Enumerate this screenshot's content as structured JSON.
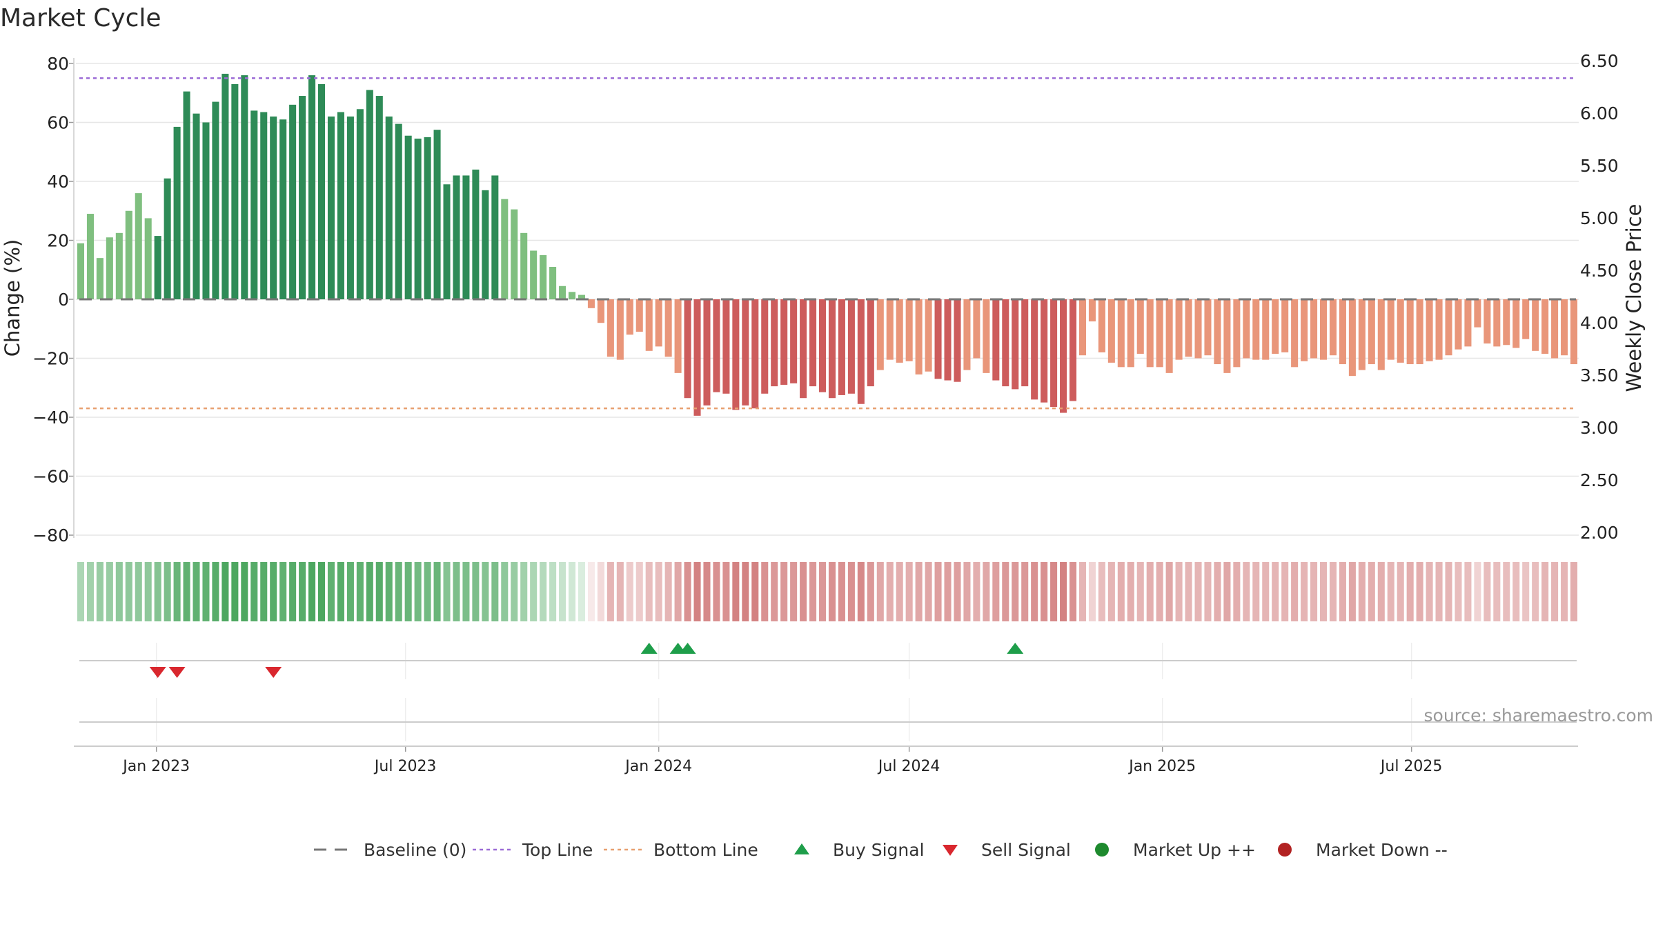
{
  "title": "Market Cycle",
  "source": "source: sharemaestro.com",
  "y_left_label": "Change (%)",
  "y_right_label": "Weekly Close Price",
  "y_left_ticks": [
    "80",
    "60",
    "40",
    "20",
    "0",
    "−20",
    "−40",
    "−60",
    "−80"
  ],
  "y_right_ticks": [
    "6.50",
    "6.00",
    "5.50",
    "5.00",
    "4.50",
    "4.00",
    "3.50",
    "3.00",
    "2.50",
    "2.00"
  ],
  "x_ticks": [
    "Jan 2023",
    "Jul 2023",
    "Jan 2024",
    "Jul 2024",
    "Jan 2025",
    "Jul 2025"
  ],
  "legend": [
    {
      "label": "Baseline (0)",
      "marker": "dash-line",
      "color": "#777777"
    },
    {
      "label": "Top Line",
      "marker": "dot-line",
      "color": "#9b6bd6"
    },
    {
      "label": "Bottom Line",
      "marker": "dot-line",
      "color": "#e8a070"
    },
    {
      "label": "Buy Signal",
      "marker": "triangle-up",
      "color": "#1e9e4a"
    },
    {
      "label": "Sell Signal",
      "marker": "triangle-down",
      "color": "#d9272e"
    },
    {
      "label": "Market Up ++",
      "marker": "circle",
      "color": "#1e8a2e"
    },
    {
      "label": "Market Down --",
      "marker": "circle",
      "color": "#b22222"
    }
  ],
  "colors": {
    "up_dark": "#2e8b57",
    "up_light": "#7fbf7f",
    "down_dark": "#cd5c5c",
    "down_light": "#e9967a",
    "top_line": "#9b6bd6",
    "bottom_line": "#e8a070",
    "baseline": "#777777",
    "buy": "#1e9e4a",
    "sell": "#d9272e"
  },
  "chart_data": {
    "type": "bar",
    "ylabel": "Change (%)",
    "y2label": "Weekly Close Price",
    "ylim": [
      -80,
      80
    ],
    "y2lim": [
      2.0,
      6.5
    ],
    "start_date": "2022-11-07",
    "frequency": "weekly",
    "top_line": 75,
    "bottom_line": -37,
    "baseline": 0,
    "values": [
      19,
      29,
      14,
      21,
      22.5,
      30,
      36,
      27.5,
      21.5,
      41,
      58.5,
      70.5,
      63,
      60,
      67,
      76.5,
      73,
      76,
      64,
      63.5,
      62,
      61,
      66,
      69,
      76,
      73,
      62,
      63.5,
      62,
      64.5,
      71,
      69,
      62,
      59.5,
      55.5,
      54.5,
      55,
      57.5,
      39,
      42,
      42,
      44,
      37,
      42,
      34,
      30.5,
      22.5,
      16.5,
      15,
      11,
      4.5,
      2.5,
      1.5,
      -3,
      -8,
      -19.5,
      -20.5,
      -12,
      -11,
      -17.5,
      -16,
      -19.5,
      -25,
      -33.5,
      -39.5,
      -36,
      -31.5,
      -32,
      -37.5,
      -36,
      -37,
      -32,
      -29.5,
      -29,
      -28.5,
      -33.5,
      -29.5,
      -31.5,
      -33.5,
      -32.5,
      -32,
      -35.5,
      -29.5,
      -24,
      -20.5,
      -21.5,
      -21,
      -25.5,
      -24.5,
      -27,
      -27.5,
      -28,
      -24,
      -20,
      -25,
      -27.5,
      -29.5,
      -30.5,
      -29.5,
      -34,
      -35,
      -36.5,
      -38.5,
      -34.5,
      -19,
      -7.5,
      -18,
      -21.5,
      -23,
      -23,
      -18.5,
      -23,
      -23,
      -25,
      -20.5,
      -19.5,
      -20,
      -19,
      -22,
      -25,
      -23,
      -20,
      -20.5,
      -20.5,
      -18.5,
      -18,
      -23,
      -21,
      -20,
      -20.5,
      -19,
      -22,
      -26,
      -24,
      -22,
      -24,
      -20.5,
      -21.5,
      -22,
      -22,
      -21,
      -20.5,
      -19,
      -17,
      -16,
      -9.5,
      -15,
      -16,
      -15.5,
      -16.5,
      -13.5,
      -17.5,
      -18.5,
      -20,
      -19,
      -22
    ],
    "strength": [
      0.45,
      0.5,
      0.55,
      0.55,
      0.6,
      0.6,
      0.6,
      0.6,
      0.65,
      0.7,
      0.8,
      0.85,
      0.85,
      0.85,
      0.9,
      0.95,
      0.95,
      0.95,
      0.9,
      0.9,
      0.9,
      0.85,
      0.9,
      0.9,
      0.95,
      0.95,
      0.85,
      0.9,
      0.85,
      0.85,
      0.9,
      0.9,
      0.85,
      0.8,
      0.8,
      0.75,
      0.75,
      0.8,
      0.65,
      0.7,
      0.7,
      0.7,
      0.65,
      0.7,
      0.6,
      0.55,
      0.5,
      0.45,
      0.4,
      0.35,
      0.3,
      0.25,
      0.2,
      0.15,
      0.25,
      0.5,
      0.5,
      0.35,
      0.35,
      0.45,
      0.45,
      0.5,
      0.6,
      0.75,
      0.85,
      0.8,
      0.75,
      0.75,
      0.85,
      0.85,
      0.85,
      0.75,
      0.7,
      0.7,
      0.7,
      0.75,
      0.7,
      0.7,
      0.75,
      0.75,
      0.75,
      0.8,
      0.7,
      0.6,
      0.55,
      0.55,
      0.55,
      0.6,
      0.6,
      0.65,
      0.65,
      0.65,
      0.6,
      0.55,
      0.6,
      0.65,
      0.7,
      0.7,
      0.7,
      0.75,
      0.75,
      0.8,
      0.85,
      0.75,
      0.5,
      0.3,
      0.45,
      0.5,
      0.55,
      0.55,
      0.5,
      0.55,
      0.55,
      0.6,
      0.5,
      0.5,
      0.5,
      0.5,
      0.55,
      0.6,
      0.55,
      0.5,
      0.5,
      0.5,
      0.5,
      0.5,
      0.55,
      0.5,
      0.5,
      0.5,
      0.5,
      0.55,
      0.6,
      0.55,
      0.55,
      0.55,
      0.5,
      0.5,
      0.55,
      0.55,
      0.5,
      0.5,
      0.5,
      0.45,
      0.45,
      0.3,
      0.45,
      0.45,
      0.45,
      0.45,
      0.4,
      0.45,
      0.5,
      0.5,
      0.5,
      0.55
    ],
    "buy_signals": [
      "2023-12-25",
      "2024-01-15",
      "2024-01-22",
      "2024-09-16"
    ],
    "sell_signals": [
      "2023-01-02",
      "2023-01-16",
      "2023-03-27"
    ]
  }
}
